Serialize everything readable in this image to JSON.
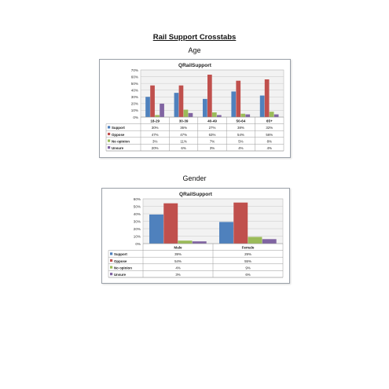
{
  "page": {
    "title": "Rail Support Crosstabs"
  },
  "sections": [
    {
      "heading": "Age"
    },
    {
      "heading": "Gender"
    }
  ],
  "chart_data": [
    {
      "type": "bar",
      "title": "QRailSupport",
      "categories": [
        "18-29",
        "30-39",
        "40-49",
        "50-64",
        "65+"
      ],
      "ylim": [
        0,
        70
      ],
      "yticks": [
        0,
        10,
        20,
        30,
        40,
        50,
        60,
        70
      ],
      "ytick_labels": [
        "0%",
        "10%",
        "20%",
        "30%",
        "40%",
        "50%",
        "60%",
        "70%"
      ],
      "grid": true,
      "legend": "data-table",
      "series": [
        {
          "name": "Support",
          "color": "#4f81bd",
          "values": [
            30,
            36,
            27,
            38,
            32
          ],
          "labels": [
            "30%",
            "36%",
            "27%",
            "38%",
            "32%"
          ]
        },
        {
          "name": "Oppose",
          "color": "#c0504d",
          "values": [
            47,
            47,
            63,
            54,
            56
          ],
          "labels": [
            "47%",
            "47%",
            "63%",
            "54%",
            "56%"
          ]
        },
        {
          "name": "No opinion",
          "color": "#9bbb59",
          "values": [
            3,
            11,
            7,
            5,
            8
          ],
          "labels": [
            "3%",
            "11%",
            "7%",
            "5%",
            "8%"
          ]
        },
        {
          "name": "Unsure",
          "color": "#8064a2",
          "values": [
            20,
            6,
            3,
            4,
            4
          ],
          "labels": [
            "20%",
            "6%",
            "3%",
            "4%",
            "4%"
          ]
        }
      ]
    },
    {
      "type": "bar",
      "title": "QRailSupport",
      "categories": [
        "Male",
        "Female"
      ],
      "ylim": [
        0,
        60
      ],
      "yticks": [
        0,
        10,
        20,
        30,
        40,
        50,
        60
      ],
      "ytick_labels": [
        "0%",
        "10%",
        "20%",
        "30%",
        "40%",
        "50%",
        "60%"
      ],
      "grid": true,
      "legend": "data-table",
      "series": [
        {
          "name": "Support",
          "color": "#4f81bd",
          "values": [
            39,
            29
          ],
          "labels": [
            "39%",
            "29%"
          ]
        },
        {
          "name": "Oppose",
          "color": "#c0504d",
          "values": [
            54,
            55
          ],
          "labels": [
            "54%",
            "55%"
          ]
        },
        {
          "name": "No opinion",
          "color": "#9bbb59",
          "values": [
            4,
            9
          ],
          "labels": [
            "4%",
            "9%"
          ]
        },
        {
          "name": "Unsure",
          "color": "#8064a2",
          "values": [
            3,
            6
          ],
          "labels": [
            "3%",
            "6%"
          ]
        }
      ]
    }
  ]
}
